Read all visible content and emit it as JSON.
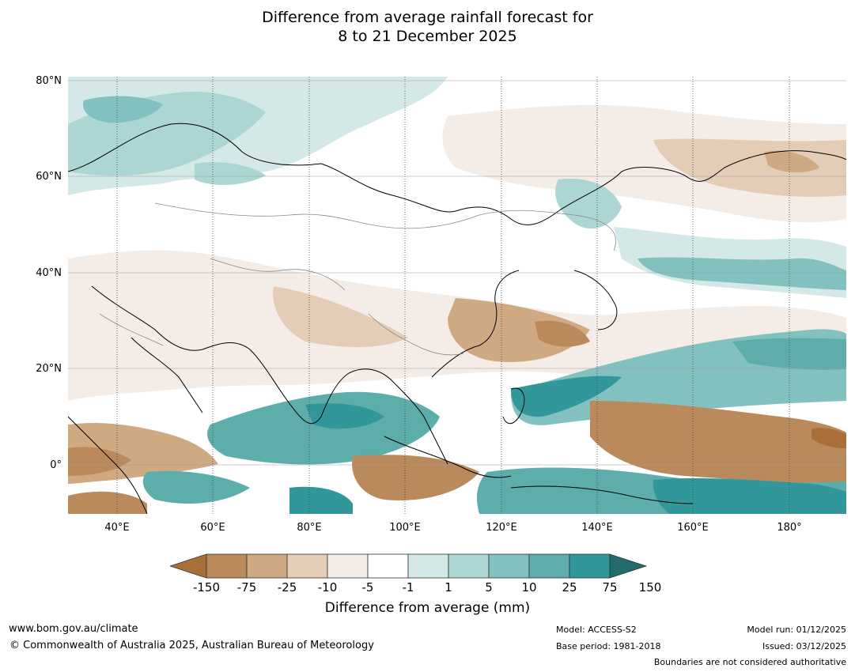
{
  "title_line1": "Difference from average rainfall forecast for",
  "title_line2": "8 to 21 December 2025",
  "lat_labels": [
    "80°N",
    "60°N",
    "40°N",
    "20°N",
    "0°"
  ],
  "lon_labels": [
    "40°E",
    "60°E",
    "80°E",
    "100°E",
    "120°E",
    "140°E",
    "160°E",
    "180°"
  ],
  "legend": {
    "title": "Difference from average (mm)",
    "tick_labels": [
      "-150",
      "-75",
      "-25",
      "-10",
      "-5",
      "-1",
      "1",
      "5",
      "10",
      "25",
      "75",
      "150"
    ],
    "colors": [
      "#a87038",
      "#ba8a5c",
      "#cfa982",
      "#e3cdb6",
      "#f4ece6",
      "#ffffff",
      "#d3e8e7",
      "#acd6d4",
      "#82c1bf",
      "#5dadab",
      "#31979b",
      "#236c6c"
    ]
  },
  "footer": {
    "website": "www.bom.gov.au/climate",
    "copyright": "© Commonwealth of Australia 2025, Australian Bureau of Meteorology",
    "model": "Model: ACCESS-S2",
    "base_period": "Base period: 1981-2018",
    "model_run": "Model run: 01/12/2025",
    "issued": "Issued: 03/12/2025",
    "disclaimer": "Boundaries are not considered authoritative"
  }
}
